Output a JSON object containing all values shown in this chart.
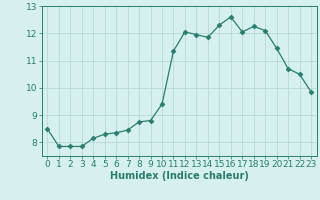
{
  "x": [
    0,
    1,
    2,
    3,
    4,
    5,
    6,
    7,
    8,
    9,
    10,
    11,
    12,
    13,
    14,
    15,
    16,
    17,
    18,
    19,
    20,
    21,
    22,
    23
  ],
  "y": [
    8.5,
    7.85,
    7.85,
    7.85,
    8.15,
    8.3,
    8.35,
    8.45,
    8.75,
    8.8,
    9.4,
    11.35,
    12.05,
    11.95,
    11.85,
    12.3,
    12.6,
    12.05,
    12.25,
    12.1,
    11.45,
    10.7,
    10.5,
    9.85
  ],
  "line_color": "#2a7d6e",
  "marker": "D",
  "marker_size": 2.5,
  "bg_color": "#d6f0ef",
  "grid_color": "#b8d8d5",
  "xlabel": "Humidex (Indice chaleur)",
  "xlim": [
    -0.5,
    23.5
  ],
  "ylim": [
    7.5,
    13.0
  ],
  "yticks": [
    8,
    9,
    10,
    11,
    12,
    13
  ],
  "xticks": [
    0,
    1,
    2,
    3,
    4,
    5,
    6,
    7,
    8,
    9,
    10,
    11,
    12,
    13,
    14,
    15,
    16,
    17,
    18,
    19,
    20,
    21,
    22,
    23
  ],
  "axis_color": "#2a7d6e",
  "tick_color": "#2a7d6e",
  "xlabel_fontsize": 7,
  "tick_fontsize": 6.5
}
